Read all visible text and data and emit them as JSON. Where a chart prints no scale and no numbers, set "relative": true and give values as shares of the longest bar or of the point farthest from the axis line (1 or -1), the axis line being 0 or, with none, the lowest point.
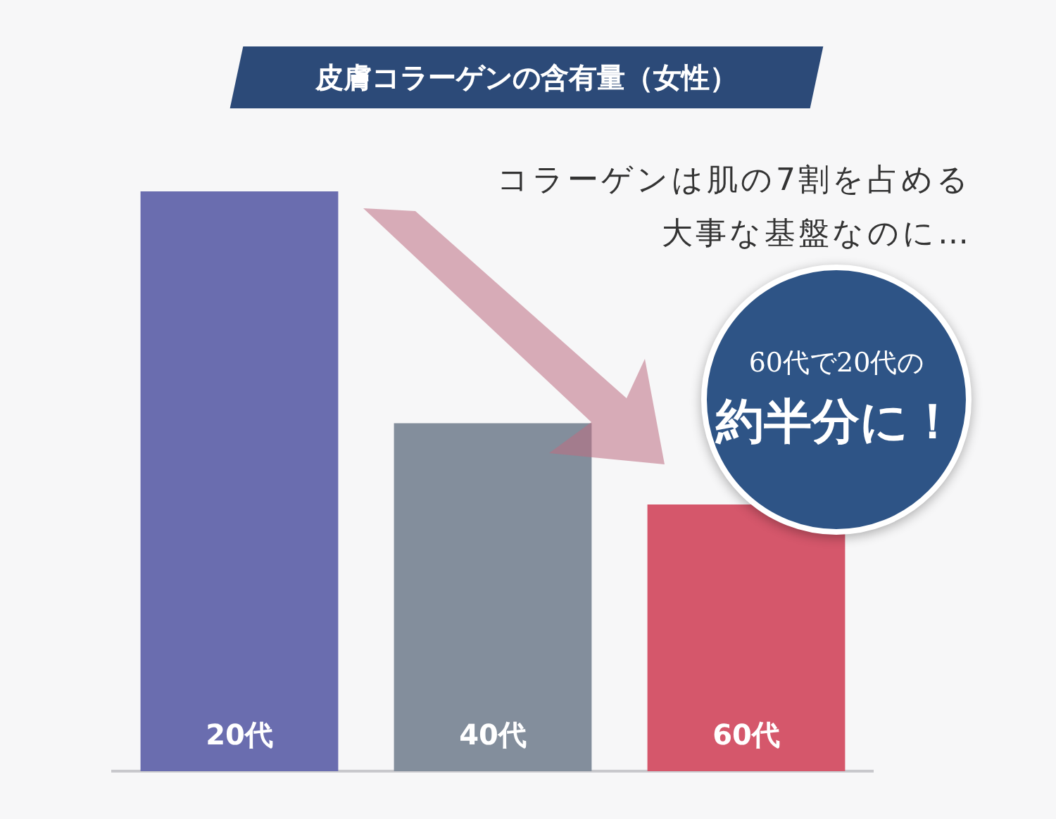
{
  "chart_data": {
    "type": "bar",
    "title": "皮膚コラーゲンの含有量（女性）",
    "categories": [
      "20代",
      "40代",
      "60代"
    ],
    "values": [
      1,
      0.6,
      0.46
    ],
    "colors": [
      "#6a6daf",
      "#838e9c",
      "#d5576b"
    ],
    "relative": true,
    "annotations": [
      "コラーゲンは肌の7割を占める",
      "大事な基盤なのに…",
      "60代で20代の",
      "約半分に！"
    ]
  }
}
